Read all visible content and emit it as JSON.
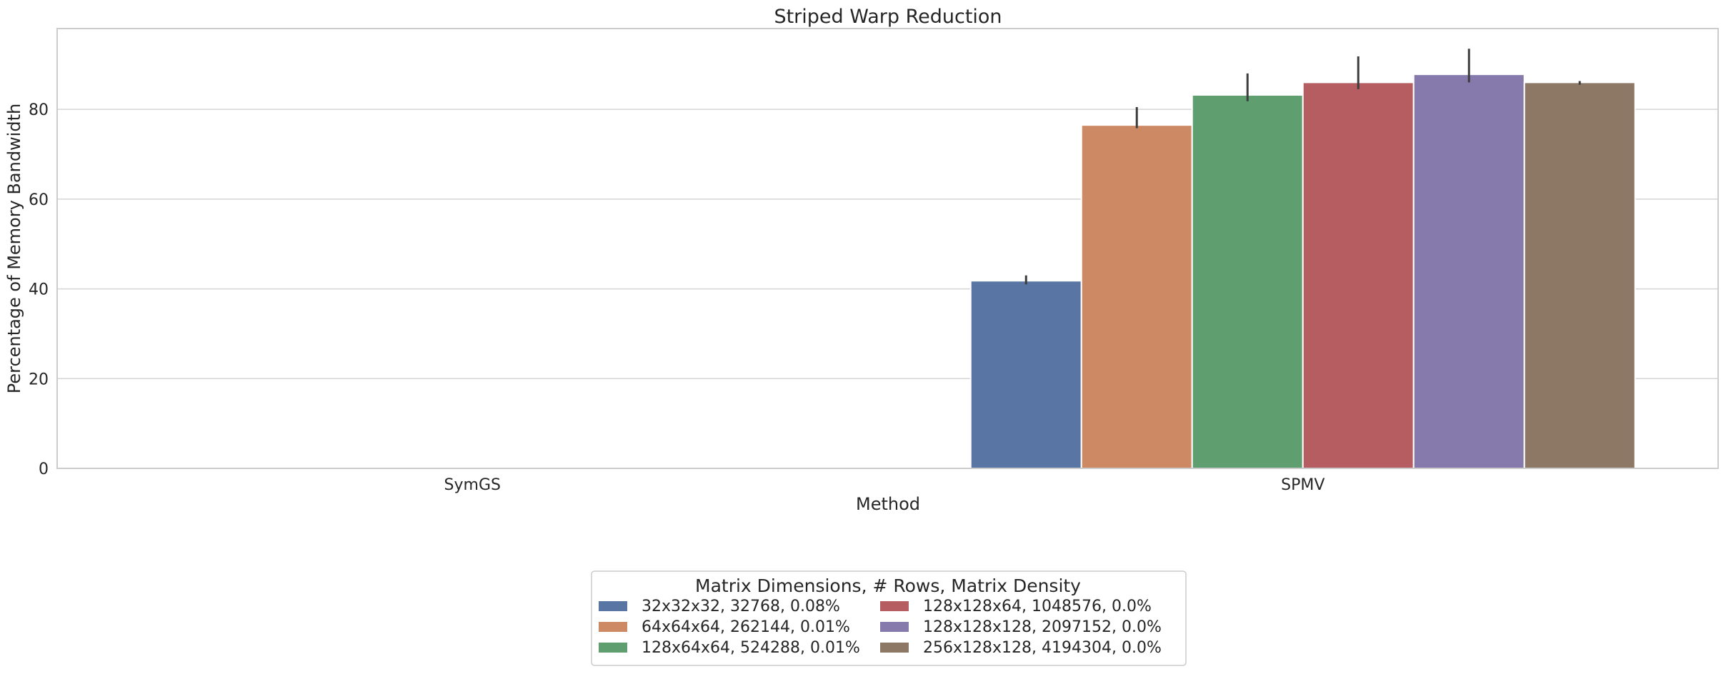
{
  "chart_data": {
    "type": "bar",
    "title": "Striped Warp Reduction",
    "xlabel": "Method",
    "ylabel": "Percentage of Memory Bandwidth",
    "categories": [
      "SymGS",
      "SPMV"
    ],
    "ylim": [
      0,
      98
    ],
    "yticks": [
      0,
      20,
      40,
      60,
      80
    ],
    "grid": "horizontal",
    "legend": {
      "title": "Matrix Dimensions, # Rows, Matrix Density",
      "placement": "bottom-center",
      "columns": 2
    },
    "series": [
      {
        "name": "32x32x32, 32768, 0.08%",
        "color": "#5875a4",
        "values": [
          null,
          41.8
        ],
        "err_low": [
          null,
          41.0
        ],
        "err_high": [
          null,
          43.0
        ]
      },
      {
        "name": "64x64x64, 262144, 0.01%",
        "color": "#cc8963",
        "values": [
          null,
          76.5
        ],
        "err_low": [
          null,
          75.8
        ],
        "err_high": [
          null,
          80.5
        ]
      },
      {
        "name": "128x64x64, 524288, 0.01%",
        "color": "#5f9e6e",
        "values": [
          null,
          83.2
        ],
        "err_low": [
          null,
          81.8
        ],
        "err_high": [
          null,
          88.0
        ]
      },
      {
        "name": "128x128x64, 1048576, 0.0%",
        "color": "#b55d60",
        "values": [
          null,
          86.0
        ],
        "err_low": [
          null,
          84.5
        ],
        "err_high": [
          null,
          91.8
        ]
      },
      {
        "name": "128x128x128, 2097152, 0.0%",
        "color": "#857aab",
        "values": [
          null,
          87.8
        ],
        "err_low": [
          null,
          86.0
        ],
        "err_high": [
          null,
          93.5
        ]
      },
      {
        "name": "256x128x128, 4194304, 0.0%",
        "color": "#8d7866",
        "values": [
          null,
          86.0
        ],
        "err_low": [
          null,
          85.5
        ],
        "err_high": [
          null,
          86.3
        ]
      }
    ]
  }
}
